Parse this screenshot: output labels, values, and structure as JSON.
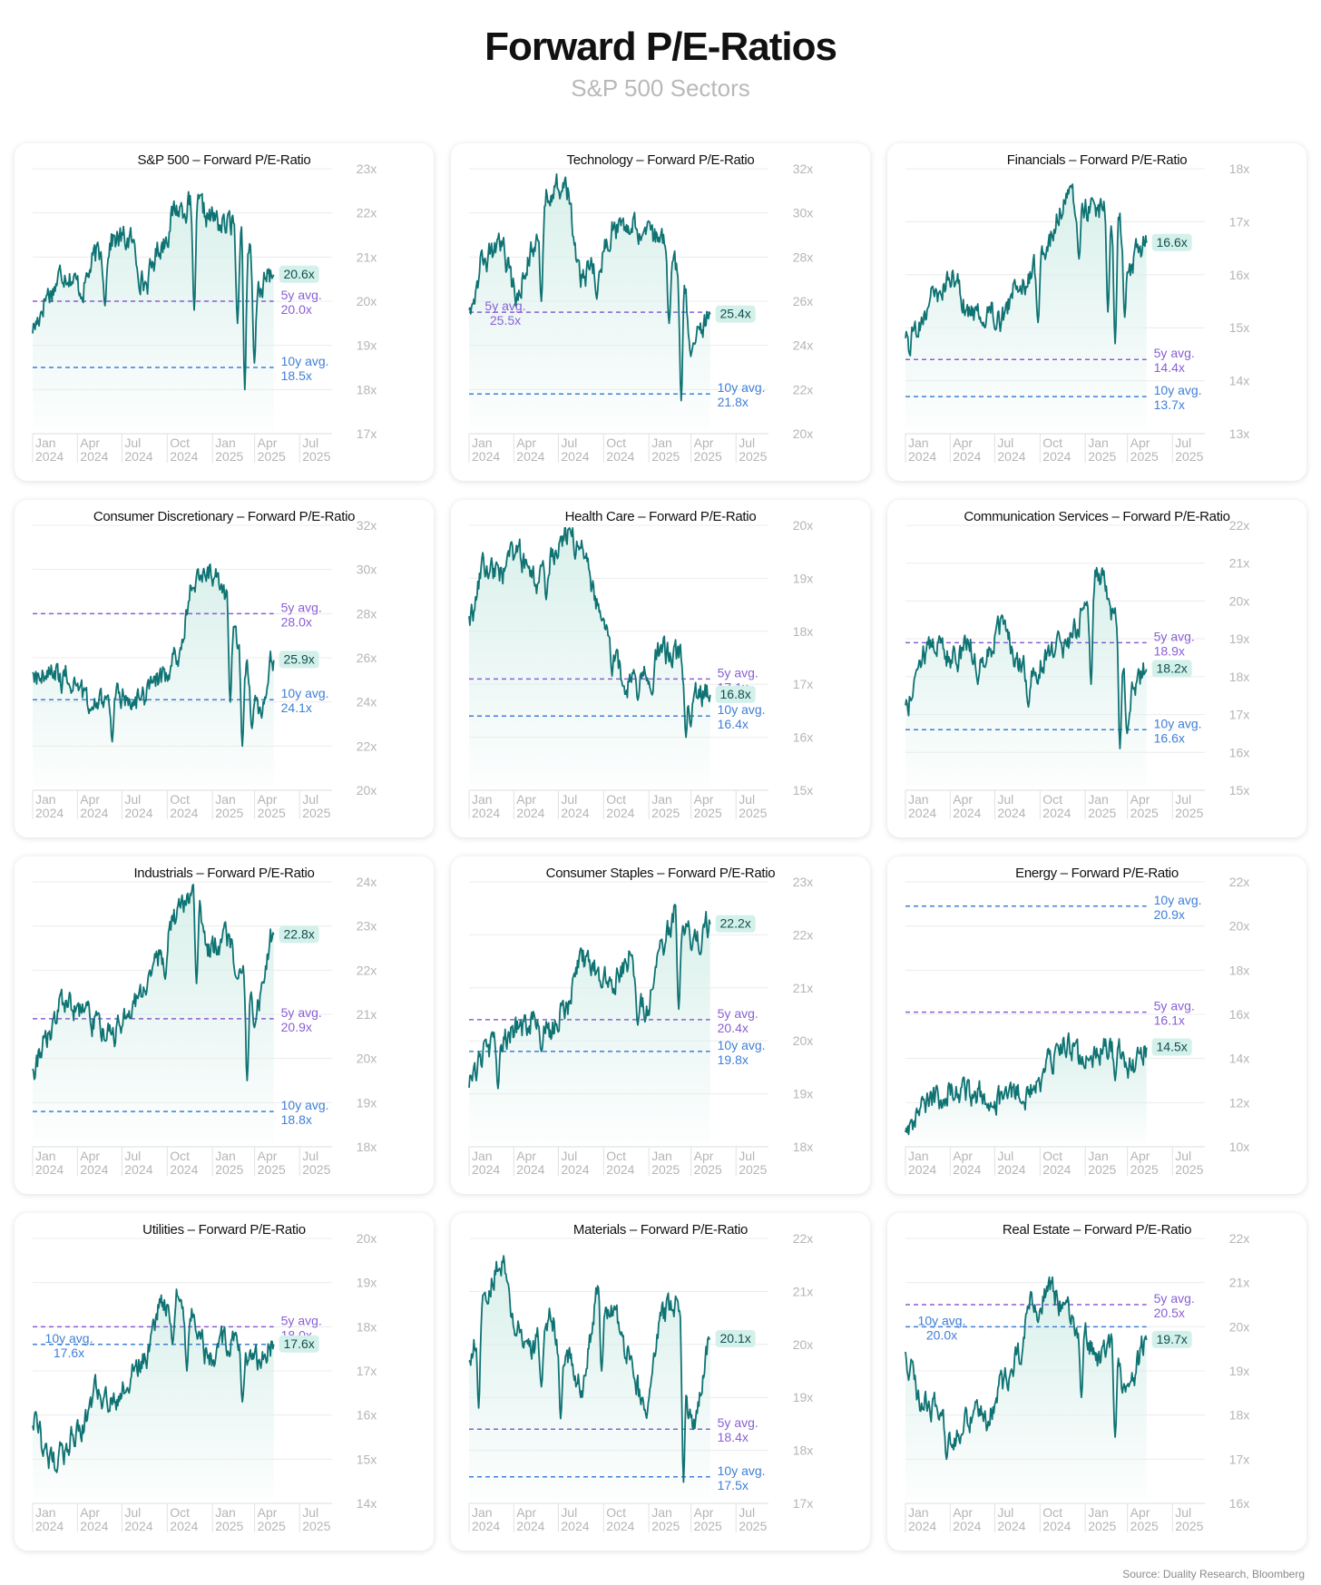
{
  "header": {
    "title": "Forward P/E-Ratios",
    "subtitle": "S&P 500 Sectors"
  },
  "source": "Source: Duality Research, Bloomberg",
  "colors": {
    "line": "#0f7373",
    "fill": "#d7efea",
    "avg5y": "#8a5fd4",
    "avg10y": "#3f7fd6",
    "axis": "#b5b5b5",
    "grid": "#ececec",
    "badge_bg": "#d4f0ea"
  },
  "x_ticks": [
    {
      "m": "Jan",
      "y": "2024"
    },
    {
      "m": "Apr",
      "y": "2024"
    },
    {
      "m": "Jul",
      "y": "2024"
    },
    {
      "m": "Oct",
      "y": "2024"
    },
    {
      "m": "Jan",
      "y": "2025"
    },
    {
      "m": "Apr",
      "y": "2025"
    },
    {
      "m": "Jul",
      "y": "2025"
    }
  ],
  "chart_data": [
    {
      "type": "line",
      "title": "S&P 500 – Forward P/E-Ratio",
      "x": [
        "2024-01",
        "2024-02",
        "2024-03",
        "2024-04",
        "2024-05",
        "2024-06",
        "2024-07",
        "2024-08",
        "2024-09",
        "2024-10",
        "2024-11",
        "2024-12",
        "2025-01",
        "2025-02",
        "2025-03",
        "2025-04"
      ],
      "values": [
        19.4,
        20.2,
        20.7,
        20.3,
        21.0,
        21.4,
        21.4,
        20.4,
        21.3,
        22.1,
        22.2,
        21.9,
        21.7,
        22.0,
        20.3,
        20.6
      ],
      "dips": [
        [
          0.3,
          19.9
        ],
        [
          0.67,
          19.8
        ],
        [
          0.85,
          19.5
        ],
        [
          0.88,
          18.0
        ],
        [
          0.92,
          18.6
        ]
      ],
      "ylim": [
        17,
        23
      ],
      "yticks": [
        "17x",
        "18x",
        "19x",
        "20x",
        "21x",
        "22x",
        "23x"
      ],
      "last_label": "20.6x",
      "avg5y": {
        "value": 20.0,
        "label": "5y avg.",
        "value_label": "20.0x"
      },
      "avg10y": {
        "value": 18.5,
        "label": "10y avg.",
        "value_label": "18.5x"
      }
    },
    {
      "type": "line",
      "title": "Technology – Forward P/E-Ratio",
      "x": [
        "2024-01",
        "2024-02",
        "2024-03",
        "2024-04",
        "2024-05",
        "2024-06",
        "2024-07",
        "2024-08",
        "2024-09",
        "2024-10",
        "2024-11",
        "2024-12",
        "2025-01",
        "2025-02",
        "2025-03",
        "2025-04"
      ],
      "values": [
        26.0,
        28.0,
        28.3,
        26.3,
        28.5,
        31.0,
        31.2,
        27.0,
        27.8,
        29.3,
        29.6,
        29.2,
        28.5,
        27.5,
        24.5,
        25.4
      ],
      "dips": [
        [
          0.3,
          26.0
        ],
        [
          0.53,
          26.1
        ],
        [
          0.83,
          25.0
        ],
        [
          0.88,
          21.5
        ],
        [
          0.92,
          23.5
        ]
      ],
      "ylim": [
        20,
        32
      ],
      "yticks": [
        "20x",
        "22x",
        "24x",
        "26x",
        "28x",
        "30x",
        "32x"
      ],
      "last_label": "25.4x",
      "avg5y": {
        "value": 25.5,
        "label": "5y avg.",
        "value_label": "25.5x"
      },
      "avg10y": {
        "value": 21.8,
        "label": "10y avg.",
        "value_label": "21.8x"
      }
    },
    {
      "type": "line",
      "title": "Financials – Forward P/E-Ratio",
      "x": [
        "2024-01",
        "2024-02",
        "2024-03",
        "2024-04",
        "2024-05",
        "2024-06",
        "2024-07",
        "2024-08",
        "2024-09",
        "2024-10",
        "2024-11",
        "2024-12",
        "2025-01",
        "2025-02",
        "2025-03",
        "2025-04"
      ],
      "values": [
        14.6,
        15.2,
        15.6,
        16.0,
        15.2,
        15.4,
        15.2,
        15.8,
        16.1,
        16.7,
        17.5,
        17.3,
        17.2,
        17.3,
        16.2,
        16.6
      ],
      "dips": [
        [
          0.33,
          15.0
        ],
        [
          0.55,
          15.1
        ],
        [
          0.72,
          16.3
        ],
        [
          0.84,
          15.3
        ],
        [
          0.87,
          14.7
        ],
        [
          0.91,
          15.2
        ]
      ],
      "ylim": [
        13,
        18
      ],
      "yticks": [
        "13x",
        "14x",
        "15x",
        "16x",
        "17x",
        "18x"
      ],
      "last_label": "16.6x",
      "avg5y": {
        "value": 14.4,
        "label": "5y avg.",
        "value_label": "14.4x"
      },
      "avg10y": {
        "value": 13.7,
        "label": "10y avg.",
        "value_label": "13.7x"
      }
    },
    {
      "type": "line",
      "title": "Consumer Discretionary – Forward P/E-Ratio",
      "x": [
        "2024-01",
        "2024-02",
        "2024-03",
        "2024-04",
        "2024-05",
        "2024-06",
        "2024-07",
        "2024-08",
        "2024-09",
        "2024-10",
        "2024-11",
        "2024-12",
        "2025-01",
        "2025-02",
        "2025-03",
        "2025-04"
      ],
      "values": [
        25.0,
        25.2,
        25.1,
        24.3,
        23.8,
        24.5,
        24.0,
        24.3,
        25.0,
        26.0,
        29.5,
        29.8,
        28.8,
        26.5,
        23.5,
        25.9
      ],
      "dips": [
        [
          0.24,
          23.6
        ],
        [
          0.33,
          22.2
        ],
        [
          0.82,
          24.0
        ],
        [
          0.87,
          22.0
        ],
        [
          0.91,
          22.8
        ]
      ],
      "ylim": [
        20,
        32
      ],
      "yticks": [
        "20x",
        "22x",
        "24x",
        "26x",
        "28x",
        "30x",
        "32x"
      ],
      "last_label": "25.9x",
      "avg5y": {
        "value": 28.0,
        "label": "5y avg.",
        "value_label": "28.0x"
      },
      "avg10y": {
        "value": 24.1,
        "label": "10y avg.",
        "value_label": "24.1x"
      }
    },
    {
      "type": "line",
      "title": "Health Care – Forward P/E-Ratio",
      "x": [
        "2024-01",
        "2024-02",
        "2024-03",
        "2024-04",
        "2024-05",
        "2024-06",
        "2024-07",
        "2024-08",
        "2024-09",
        "2024-10",
        "2024-11",
        "2024-12",
        "2025-01",
        "2025-02",
        "2025-03",
        "2025-04"
      ],
      "values": [
        18.2,
        19.2,
        19.1,
        19.5,
        18.9,
        19.4,
        19.8,
        19.6,
        18.6,
        17.4,
        17.0,
        17.2,
        17.6,
        17.5,
        16.9,
        16.8
      ],
      "dips": [
        [
          0.32,
          18.6
        ],
        [
          0.55,
          18.2
        ],
        [
          0.7,
          16.7
        ],
        [
          0.76,
          16.8
        ],
        [
          0.9,
          16.0
        ],
        [
          0.92,
          16.2
        ]
      ],
      "ylim": [
        15,
        20
      ],
      "yticks": [
        "15x",
        "16x",
        "17x",
        "18x",
        "19x",
        "20x"
      ],
      "last_label": "16.8x",
      "avg5y": {
        "value": 17.1,
        "label": "5y avg.",
        "value_label": "17.1x"
      },
      "avg10y": {
        "value": 16.4,
        "label": "10y avg.",
        "value_label": "16.4x"
      }
    },
    {
      "type": "line",
      "title": "Communication Services – Forward P/E-Ratio",
      "x": [
        "2024-01",
        "2024-02",
        "2024-03",
        "2024-04",
        "2024-05",
        "2024-06",
        "2024-07",
        "2024-08",
        "2024-09",
        "2024-10",
        "2024-11",
        "2024-12",
        "2025-01",
        "2025-02",
        "2025-03",
        "2025-04"
      ],
      "values": [
        17.2,
        18.6,
        18.9,
        18.5,
        18.8,
        18.5,
        19.4,
        18.3,
        18.2,
        18.7,
        18.8,
        19.5,
        20.8,
        19.5,
        17.5,
        18.2
      ],
      "dips": [
        [
          0.3,
          17.8
        ],
        [
          0.51,
          17.2
        ],
        [
          0.77,
          17.8
        ],
        [
          0.89,
          16.1
        ],
        [
          0.92,
          16.5
        ]
      ],
      "ylim": [
        15,
        22
      ],
      "yticks": [
        "15x",
        "16x",
        "17x",
        "18x",
        "19x",
        "20x",
        "21x",
        "22x"
      ],
      "last_label": "18.2x",
      "avg5y": {
        "value": 18.9,
        "label": "5y avg.",
        "value_label": "18.9x"
      },
      "avg10y": {
        "value": 16.6,
        "label": "10y avg.",
        "value_label": "16.6x"
      }
    },
    {
      "type": "line",
      "title": "Industrials – Forward P/E-Ratio",
      "x": [
        "2024-01",
        "2024-02",
        "2024-03",
        "2024-04",
        "2024-05",
        "2024-06",
        "2024-07",
        "2024-08",
        "2024-09",
        "2024-10",
        "2024-11",
        "2024-12",
        "2025-01",
        "2025-02",
        "2025-03",
        "2025-04"
      ],
      "values": [
        19.8,
        20.5,
        21.3,
        21.0,
        20.8,
        20.6,
        21.0,
        21.6,
        22.4,
        23.2,
        23.8,
        22.5,
        22.7,
        22.0,
        21.2,
        22.8
      ],
      "dips": [
        [
          0.3,
          20.4
        ],
        [
          0.55,
          21.8
        ],
        [
          0.68,
          21.7
        ],
        [
          0.85,
          21.8
        ],
        [
          0.89,
          19.5
        ],
        [
          0.92,
          20.7
        ]
      ],
      "ylim": [
        18,
        24
      ],
      "yticks": [
        "18x",
        "19x",
        "20x",
        "21x",
        "22x",
        "23x",
        "24x"
      ],
      "last_label": "22.8x",
      "avg5y": {
        "value": 20.9,
        "label": "5y avg.",
        "value_label": "20.9x"
      },
      "avg10y": {
        "value": 18.8,
        "label": "10y avg.",
        "value_label": "18.8x"
      }
    },
    {
      "type": "line",
      "title": "Consumer Staples – Forward P/E-Ratio",
      "x": [
        "2024-01",
        "2024-02",
        "2024-03",
        "2024-04",
        "2024-05",
        "2024-06",
        "2024-07",
        "2024-08",
        "2024-09",
        "2024-10",
        "2024-11",
        "2024-12",
        "2025-01",
        "2025-02",
        "2025-03",
        "2025-04"
      ],
      "values": [
        19.2,
        19.8,
        20.0,
        20.2,
        20.4,
        20.2,
        20.6,
        21.5,
        21.3,
        21.2,
        21.6,
        20.6,
        21.8,
        22.5,
        21.9,
        22.2
      ],
      "dips": [
        [
          0.12,
          19.1
        ],
        [
          0.3,
          19.8
        ],
        [
          0.55,
          21.0
        ],
        [
          0.7,
          20.3
        ],
        [
          0.87,
          20.6
        ]
      ],
      "ylim": [
        18,
        23
      ],
      "yticks": [
        "18x",
        "19x",
        "20x",
        "21x",
        "22x",
        "23x"
      ],
      "last_label": "22.2x",
      "avg5y": {
        "value": 20.4,
        "label": "5y avg.",
        "value_label": "20.4x"
      },
      "avg10y": {
        "value": 19.8,
        "label": "10y avg.",
        "value_label": "19.8x"
      }
    },
    {
      "type": "line",
      "title": "Energy – Forward P/E-Ratio",
      "x": [
        "2024-01",
        "2024-02",
        "2024-03",
        "2024-04",
        "2024-05",
        "2024-06",
        "2024-07",
        "2024-08",
        "2024-09",
        "2024-10",
        "2024-11",
        "2024-12",
        "2025-01",
        "2025-02",
        "2025-03",
        "2025-04"
      ],
      "values": [
        11.0,
        11.6,
        12.2,
        12.9,
        12.3,
        12.4,
        12.0,
        12.4,
        12.5,
        13.8,
        14.7,
        13.9,
        14.4,
        14.7,
        13.6,
        14.5
      ],
      "dips": [
        [
          0.2,
          12.1
        ],
        [
          0.36,
          11.8
        ],
        [
          0.48,
          12.0
        ],
        [
          0.76,
          13.9
        ],
        [
          0.87,
          13.0
        ]
      ],
      "ylim": [
        10,
        22
      ],
      "yticks": [
        "10x",
        "12x",
        "14x",
        "16x",
        "18x",
        "20x",
        "22x"
      ],
      "last_label": "14.5x",
      "avg5y": {
        "value": 16.1,
        "label": "5y avg.",
        "value_label": "16.1x"
      },
      "avg10y": {
        "value": 20.9,
        "label": "10y avg.",
        "value_label": "20.9x"
      }
    },
    {
      "type": "line",
      "title": "Utilities – Forward P/E-Ratio",
      "x": [
        "2024-01",
        "2024-02",
        "2024-03",
        "2024-04",
        "2024-05",
        "2024-06",
        "2024-07",
        "2024-08",
        "2024-09",
        "2024-10",
        "2024-11",
        "2024-12",
        "2025-01",
        "2025-02",
        "2025-03",
        "2025-04"
      ],
      "values": [
        16.0,
        14.9,
        15.2,
        15.8,
        16.5,
        16.3,
        16.9,
        17.4,
        18.5,
        18.7,
        18.2,
        17.3,
        17.7,
        17.5,
        17.2,
        17.6
      ],
      "dips": [
        [
          0.1,
          14.7
        ],
        [
          0.4,
          16.5
        ],
        [
          0.58,
          17.6
        ],
        [
          0.64,
          17.0
        ],
        [
          0.87,
          16.3
        ]
      ],
      "ylim": [
        14,
        20
      ],
      "yticks": [
        "14x",
        "15x",
        "16x",
        "17x",
        "18x",
        "19x",
        "20x"
      ],
      "last_label": "17.6x",
      "avg5y": {
        "value": 18.0,
        "label": "5y avg.",
        "value_label": "18.0x"
      },
      "avg10y": {
        "value": 17.6,
        "label": "10y avg.",
        "value_label": "17.6x"
      }
    },
    {
      "type": "line",
      "title": "Materials – Forward P/E-Ratio",
      "x": [
        "2024-01",
        "2024-02",
        "2024-03",
        "2024-04",
        "2024-05",
        "2024-06",
        "2024-07",
        "2024-08",
        "2024-09",
        "2024-10",
        "2024-11",
        "2024-12",
        "2025-01",
        "2025-02",
        "2025-03",
        "2025-04"
      ],
      "values": [
        19.5,
        21.1,
        21.6,
        20.3,
        20.0,
        20.5,
        19.8,
        19.2,
        20.9,
        20.6,
        19.8,
        18.6,
        20.5,
        20.8,
        18.5,
        20.1
      ],
      "dips": [
        [
          0.04,
          18.8
        ],
        [
          0.3,
          19.2
        ],
        [
          0.38,
          18.6
        ],
        [
          0.55,
          19.5
        ],
        [
          0.72,
          19.0
        ],
        [
          0.89,
          17.4
        ],
        [
          0.91,
          18.6
        ]
      ],
      "ylim": [
        17,
        22
      ],
      "yticks": [
        "17x",
        "18x",
        "19x",
        "20x",
        "21x",
        "22x"
      ],
      "last_label": "20.1x",
      "avg5y": {
        "value": 18.4,
        "label": "5y avg.",
        "value_label": "18.4x"
      },
      "avg10y": {
        "value": 17.5,
        "label": "10y avg.",
        "value_label": "17.5x"
      }
    },
    {
      "type": "line",
      "title": "Real Estate – Forward P/E-Ratio",
      "x": [
        "2024-01",
        "2024-02",
        "2024-03",
        "2024-04",
        "2024-05",
        "2024-06",
        "2024-07",
        "2024-08",
        "2024-09",
        "2024-10",
        "2024-11",
        "2024-12",
        "2025-01",
        "2025-02",
        "2025-03",
        "2025-04"
      ],
      "values": [
        19.3,
        18.4,
        18.2,
        17.5,
        18.0,
        17.9,
        18.6,
        19.4,
        20.6,
        20.8,
        20.4,
        19.8,
        19.3,
        19.6,
        18.7,
        19.7
      ],
      "dips": [
        [
          0.17,
          17.0
        ],
        [
          0.55,
          20.1
        ],
        [
          0.73,
          18.4
        ],
        [
          0.87,
          17.5
        ],
        [
          0.9,
          18.5
        ]
      ],
      "ylim": [
        16,
        22
      ],
      "yticks": [
        "16x",
        "17x",
        "18x",
        "19x",
        "20x",
        "21x",
        "22x"
      ],
      "last_label": "19.7x",
      "avg5y": {
        "value": 20.5,
        "label": "5y avg.",
        "value_label": "20.5x"
      },
      "avg10y": {
        "value": 20.0,
        "label": "10y avg.",
        "value_label": "20.0x"
      }
    }
  ]
}
